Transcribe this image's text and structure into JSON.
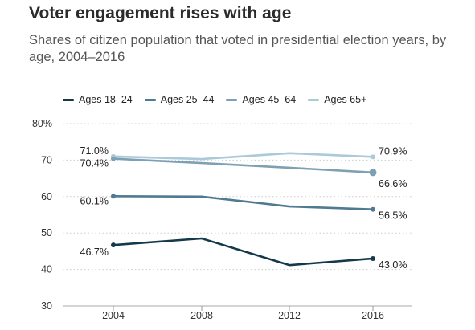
{
  "title": "Voter engagement rises with age",
  "subtitle": "Shares of citizen population that voted in presidential election years, by age, 2004–2016",
  "chart_data": {
    "type": "line",
    "title": "Voter engagement rises with age",
    "subtitle": "Shares of citizen population that voted in presidential election years, by age, 2004–2016",
    "x": [
      2004,
      2008,
      2012,
      2016
    ],
    "x_tick_labels": [
      "2004",
      "2008",
      "2012",
      "2016"
    ],
    "ylim": [
      30,
      80
    ],
    "y_ticks": [
      30,
      40,
      50,
      60,
      70,
      80
    ],
    "y_tick_labels": [
      "30",
      "40",
      "50",
      "60",
      "70",
      "80%"
    ],
    "grid": true,
    "legend_position": "top",
    "series": [
      {
        "name": "Ages 18–24",
        "color": "#13394a",
        "values": [
          46.7,
          48.5,
          41.2,
          43.0
        ],
        "labels": [
          "46.7%",
          null,
          null,
          "43.0%"
        ]
      },
      {
        "name": "Ages 25–44",
        "color": "#4f7a91",
        "values": [
          60.1,
          60.0,
          57.3,
          56.5
        ],
        "labels": [
          "60.1%",
          null,
          null,
          "56.5%"
        ]
      },
      {
        "name": "Ages 45–64",
        "color": "#7ea0b3",
        "values": [
          70.4,
          69.2,
          67.9,
          66.6
        ],
        "labels": [
          "70.4%",
          null,
          null,
          "66.6%"
        ]
      },
      {
        "name": "Ages 65+",
        "color": "#acc9da",
        "values": [
          71.0,
          70.3,
          71.9,
          70.9
        ],
        "labels": [
          "71.0%",
          null,
          null,
          "70.9%"
        ]
      }
    ]
  }
}
